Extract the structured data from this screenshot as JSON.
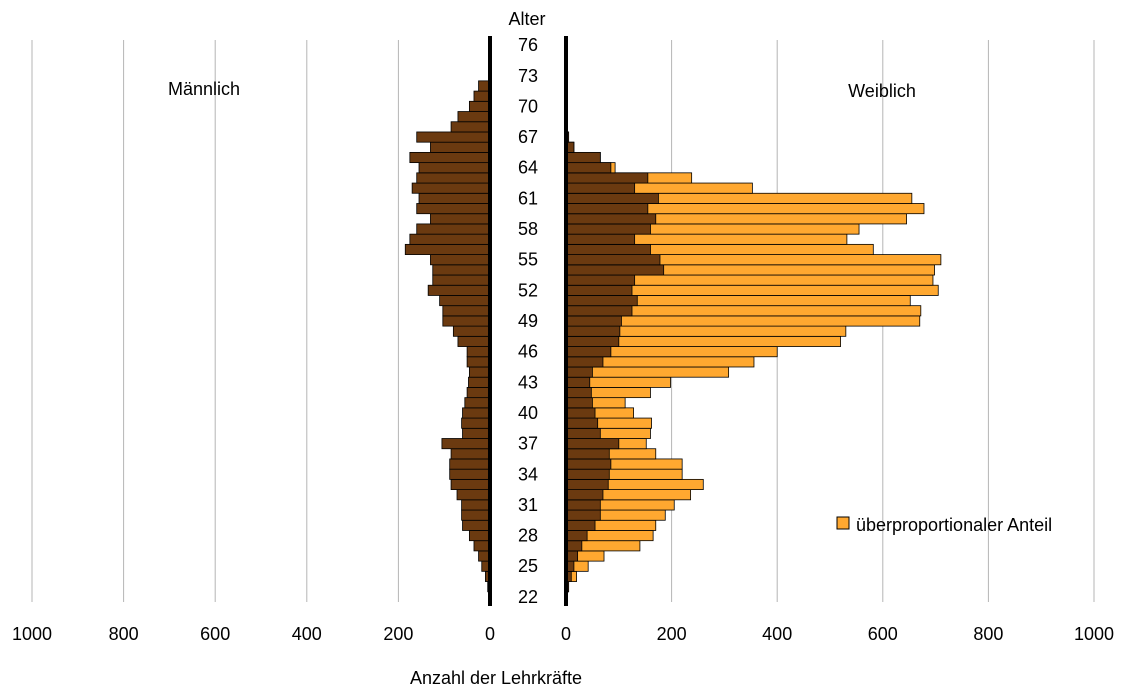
{
  "chart_data": {
    "type": "bar",
    "subtype": "population-pyramid",
    "age_axis_title": "Alter",
    "age_tick_labels": [
      "22",
      "25",
      "28",
      "31",
      "34",
      "37",
      "40",
      "43",
      "46",
      "49",
      "52",
      "55",
      "58",
      "61",
      "64",
      "67",
      "70",
      "73",
      "76"
    ],
    "xlabel": "Anzahl der Lehrkräfte",
    "left_title": "Männlich",
    "right_title": "Weiblich",
    "left_ticks": [
      "1000",
      "800",
      "600",
      "400",
      "200",
      "0"
    ],
    "right_ticks": [
      "0",
      "200",
      "400",
      "600",
      "800",
      "1000"
    ],
    "xlim": [
      0,
      1000
    ],
    "grid": true,
    "legend": {
      "label": "überproportionaler Anteil",
      "position": "right"
    },
    "colors": {
      "base": "#6b3a10",
      "overproportional": "#ffa830",
      "border": "#000000"
    },
    "ages": [
      22,
      23,
      24,
      25,
      26,
      27,
      28,
      29,
      30,
      31,
      32,
      33,
      34,
      35,
      36,
      37,
      38,
      39,
      40,
      41,
      42,
      43,
      44,
      45,
      46,
      47,
      48,
      49,
      50,
      51,
      52,
      53,
      54,
      55,
      56,
      57,
      58,
      59,
      60,
      61,
      62,
      63,
      64,
      65,
      66,
      67,
      68,
      69,
      70,
      71,
      72,
      73,
      74,
      75,
      76
    ],
    "series": [
      {
        "name": "Männlich",
        "values": [
          2,
          5,
          10,
          18,
          25,
          35,
          45,
          60,
          62,
          62,
          72,
          85,
          88,
          88,
          85,
          105,
          60,
          62,
          60,
          55,
          50,
          47,
          45,
          50,
          50,
          70,
          80,
          103,
          103,
          110,
          135,
          125,
          125,
          130,
          185,
          175,
          160,
          130,
          160,
          155,
          170,
          160,
          155,
          175,
          130,
          160,
          85,
          70,
          45,
          35,
          25,
          3,
          0,
          0,
          0
        ]
      },
      {
        "name": "Weiblich",
        "values": [
          3,
          5,
          20,
          42,
          72,
          140,
          165,
          170,
          188,
          205,
          236,
          260,
          220,
          220,
          170,
          152,
          160,
          162,
          128,
          112,
          160,
          198,
          308,
          356,
          400,
          520,
          530,
          670,
          672,
          652,
          705,
          695,
          698,
          710,
          582,
          532,
          555,
          645,
          678,
          655,
          353,
          238,
          93,
          65,
          15,
          5,
          2,
          0,
          0,
          0,
          0,
          0,
          0,
          0,
          0
        ]
      },
      {
        "name": "base",
        "values": [
          3,
          5,
          10,
          15,
          22,
          30,
          40,
          55,
          65,
          65,
          70,
          80,
          82,
          85,
          82,
          100,
          65,
          60,
          55,
          50,
          48,
          45,
          50,
          70,
          85,
          100,
          102,
          105,
          125,
          135,
          125,
          130,
          185,
          178,
          160,
          130,
          160,
          170,
          155,
          175,
          130,
          155,
          85,
          70,
          45,
          35,
          15,
          3,
          0,
          0,
          0,
          0,
          0,
          0,
          0
        ]
      }
    ]
  }
}
